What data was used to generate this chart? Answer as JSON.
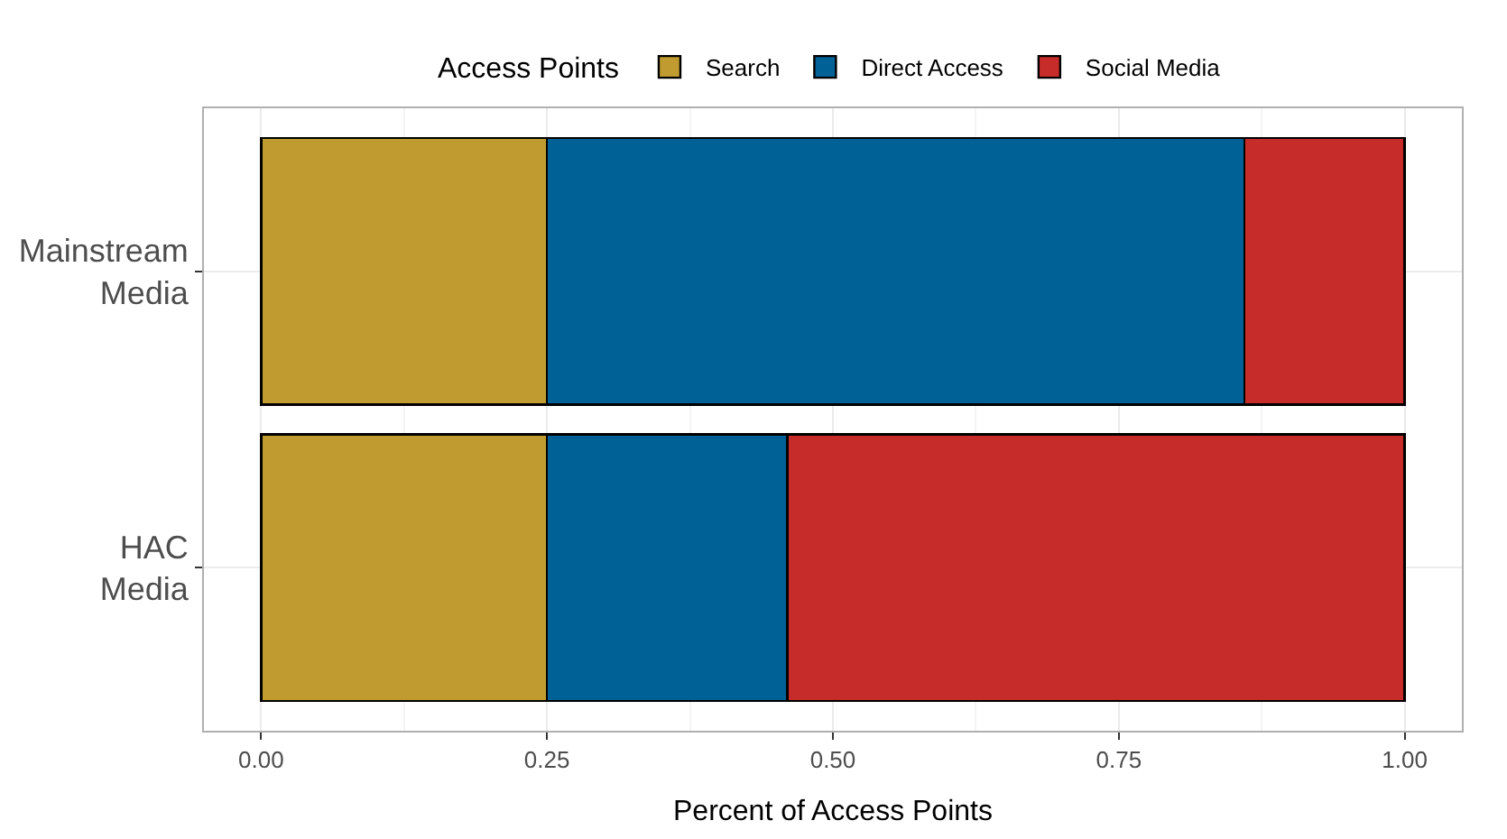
{
  "chart_data": {
    "type": "bar",
    "orientation": "horizontal",
    "stacked": true,
    "categories": [
      "Mainstream\nMedia",
      "HAC\nMedia"
    ],
    "series": [
      {
        "name": "Search",
        "color": "#bf9b30",
        "values": [
          0.25,
          0.25
        ]
      },
      {
        "name": "Direct Access",
        "color": "#006196",
        "values": [
          0.61,
          0.21
        ]
      },
      {
        "name": "Social Media",
        "color": "#c62d2a",
        "values": [
          0.14,
          0.54
        ]
      }
    ],
    "xlabel": "Percent of Access Points",
    "legend_title": "Access Points",
    "legend": "top",
    "xlim": [
      -0.05,
      1.05
    ],
    "xticks": [
      {
        "value": 0,
        "label": "0.00"
      },
      {
        "value": 0.25,
        "label": "0.25"
      },
      {
        "value": 0.5,
        "label": "0.50"
      },
      {
        "value": 0.75,
        "label": "0.75"
      },
      {
        "value": 1,
        "label": "1.00"
      }
    ],
    "grid": true
  }
}
